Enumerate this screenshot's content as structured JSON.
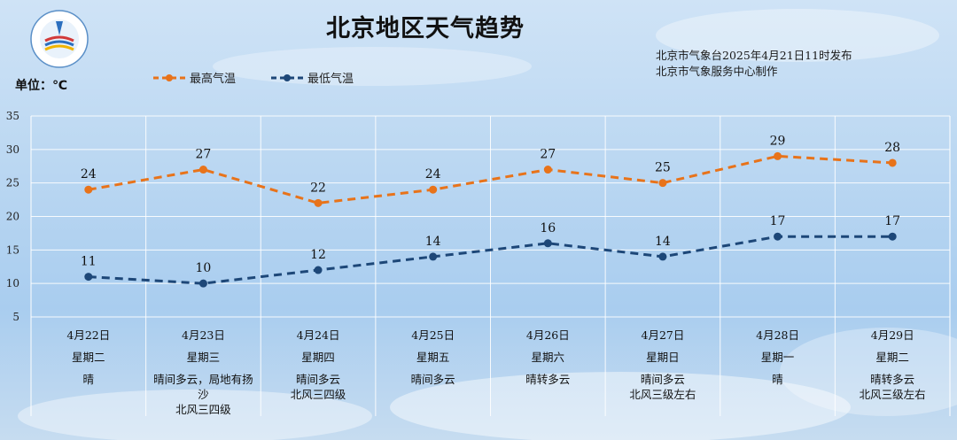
{
  "header": {
    "title": "北京地区天气趋势",
    "issuer_line1": "北京市气象台2025年4月21日11时发布",
    "issuer_line2": "北京市气象服务中心制作",
    "unit_label": "单位：℃"
  },
  "colors": {
    "high": "#e8731a",
    "low": "#1d4778",
    "grid": "#ffffff"
  },
  "chart_data": {
    "type": "line",
    "ylim": [
      5,
      35
    ],
    "yticks": [
      5,
      10,
      15,
      20,
      25,
      30,
      35
    ],
    "categories": [
      "4月22日",
      "4月23日",
      "4月24日",
      "4月25日",
      "4月26日",
      "4月27日",
      "4月28日",
      "4月29日"
    ],
    "weekdays": [
      "星期二",
      "星期三",
      "星期四",
      "星期五",
      "星期六",
      "星期日",
      "星期一",
      "星期二"
    ],
    "weather": [
      "晴",
      "晴间多云，局地有扬沙",
      "晴间多云",
      "晴间多云",
      "晴转多云",
      "晴间多云",
      "晴",
      "晴转多云"
    ],
    "wind": [
      "",
      "北风三四级",
      "北风三四级",
      "",
      "",
      "北风三级左右",
      "",
      "北风三级左右"
    ],
    "series": [
      {
        "name": "最高气温",
        "values": [
          24,
          27,
          22,
          24,
          27,
          25,
          29,
          28
        ]
      },
      {
        "name": "最低气温",
        "values": [
          11,
          10,
          12,
          14,
          16,
          14,
          17,
          17
        ]
      }
    ],
    "legend_position": "top-left",
    "grid": true
  }
}
